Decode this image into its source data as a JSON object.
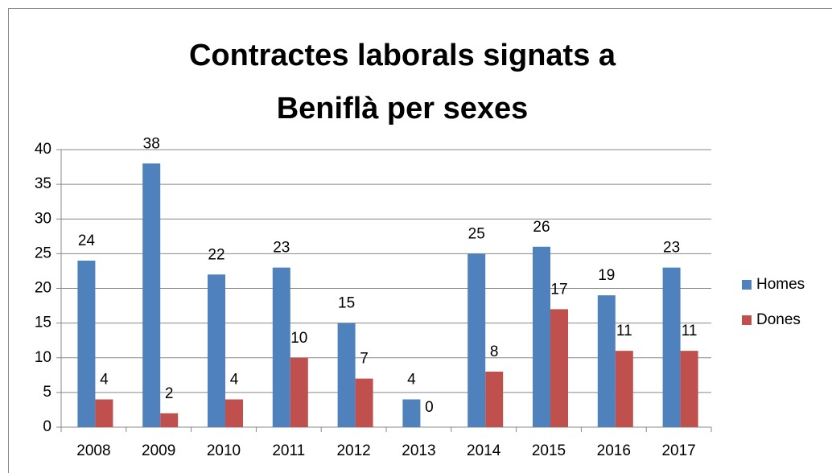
{
  "chart_data": {
    "type": "bar",
    "title": "Contractes laborals signats a Beniflà per sexes",
    "categories": [
      "2008",
      "2009",
      "2010",
      "2011",
      "2012",
      "2013",
      "2014",
      "2015",
      "2016",
      "2017"
    ],
    "series": [
      {
        "name": "Homes",
        "color": "#4f81bd",
        "values": [
          24,
          38,
          22,
          23,
          15,
          4,
          25,
          26,
          19,
          23
        ]
      },
      {
        "name": "Dones",
        "color": "#c0504d",
        "values": [
          4,
          2,
          4,
          10,
          7,
          0,
          8,
          17,
          11,
          11
        ]
      }
    ],
    "ylim": [
      0,
      40
    ],
    "yticks": [
      0,
      5,
      10,
      15,
      20,
      25,
      30,
      35,
      40
    ],
    "grid": true,
    "legend": "right",
    "data_labels": true
  }
}
